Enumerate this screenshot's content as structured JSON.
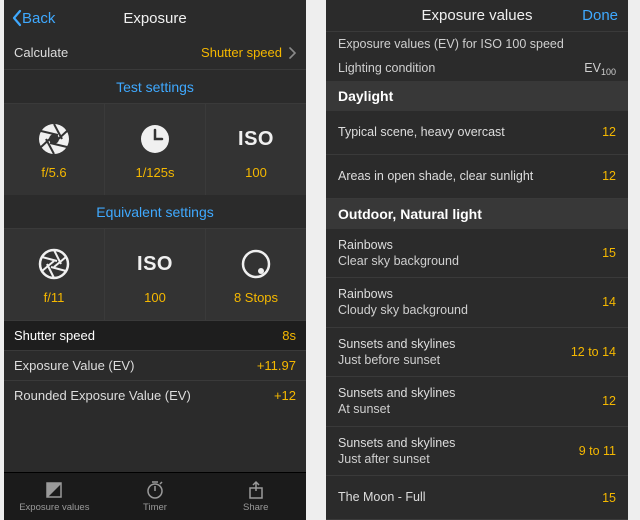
{
  "colors": {
    "bg": "#232323",
    "panel": "#2b2b2b",
    "panel_alt": "#333333",
    "panel_dark": "#1e1e1e",
    "section": "#383838",
    "border": "#3a3a3a",
    "text": "#e5e5e5",
    "muted": "#9a9a9a",
    "accent_blue": "#3fa9ff",
    "accent_yellow": "#f5b800",
    "white": "#f0f0f0",
    "tabbar": "#1b1b1b"
  },
  "left": {
    "back": "Back",
    "title": "Exposure",
    "calculate_label": "Calculate",
    "calculate_value": "Shutter speed",
    "test_header": "Test settings",
    "test": [
      {
        "icon": "aperture",
        "value": "f/5.6"
      },
      {
        "icon": "clock",
        "value": "1/125s"
      },
      {
        "icon": "iso-text",
        "value": "100",
        "icon_text": "ISO"
      }
    ],
    "equiv_header": "Equivalent settings",
    "equiv": [
      {
        "icon": "aperture-outline",
        "value": "f/11"
      },
      {
        "icon": "iso-text",
        "value": "100",
        "icon_text": "ISO"
      },
      {
        "icon": "ring",
        "value": "8 Stops"
      }
    ],
    "stats": [
      {
        "label": "Shutter speed",
        "value": "8s",
        "first": true
      },
      {
        "label": "Exposure Value (EV)",
        "value": "+11.97"
      },
      {
        "label": "Rounded Exposure Value (EV)",
        "value": "+12"
      }
    ],
    "tabs": [
      {
        "icon": "ev",
        "label": "Exposure values"
      },
      {
        "icon": "timer",
        "label": "Timer"
      },
      {
        "icon": "share",
        "label": "Share"
      }
    ]
  },
  "right": {
    "title": "Exposure values",
    "done": "Done",
    "info1": "Exposure values (EV) for ISO 100 speed",
    "info2_label": "Lighting condition",
    "info2_value_prefix": "EV",
    "info2_value_sub": "100",
    "groups": [
      {
        "name": "Daylight",
        "rows": [
          {
            "line1": "Typical scene, heavy overcast",
            "ev": "12"
          },
          {
            "line1": "Areas in open shade, clear sunlight",
            "ev": "12"
          }
        ]
      },
      {
        "name": "Outdoor, Natural light",
        "rows": [
          {
            "line1": "Rainbows",
            "line2": "Clear sky background",
            "ev": "15"
          },
          {
            "line1": "Rainbows",
            "line2": "Cloudy sky background",
            "ev": "14"
          },
          {
            "line1": "Sunsets and skylines",
            "line2": "Just before sunset",
            "ev": "12 to 14"
          },
          {
            "line1": "Sunsets and skylines",
            "line2": "At sunset",
            "ev": "12"
          },
          {
            "line1": "Sunsets and skylines",
            "line2": "Just after sunset",
            "ev": "9 to 11"
          },
          {
            "line1": "The Moon - Full",
            "ev": "15"
          }
        ]
      }
    ]
  }
}
